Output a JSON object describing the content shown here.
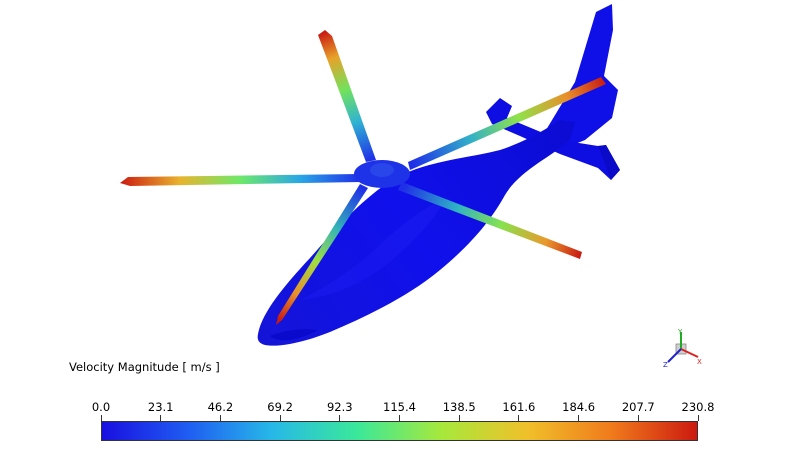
{
  "legend": {
    "title": "Velocity Magnitude [ m/s ]",
    "min": 0.0,
    "max": 230.8,
    "ticks": [
      "0.0",
      "23.1",
      "46.2",
      "69.2",
      "92.3",
      "115.4",
      "138.5",
      "161.6",
      "184.6",
      "207.7",
      "230.8"
    ]
  },
  "colors": {
    "body": "#1010e6",
    "colormap": [
      "#1a0fe0",
      "#1f5cf2",
      "#27b8e8",
      "#3ae89a",
      "#a7e83b",
      "#f0c02a",
      "#f07a1c",
      "#cc1a10"
    ]
  },
  "axis_triad": {
    "labels": [
      "Y",
      "Z",
      "X"
    ],
    "colors": [
      "#22aa22",
      "#2222cc",
      "#dd2222"
    ]
  }
}
